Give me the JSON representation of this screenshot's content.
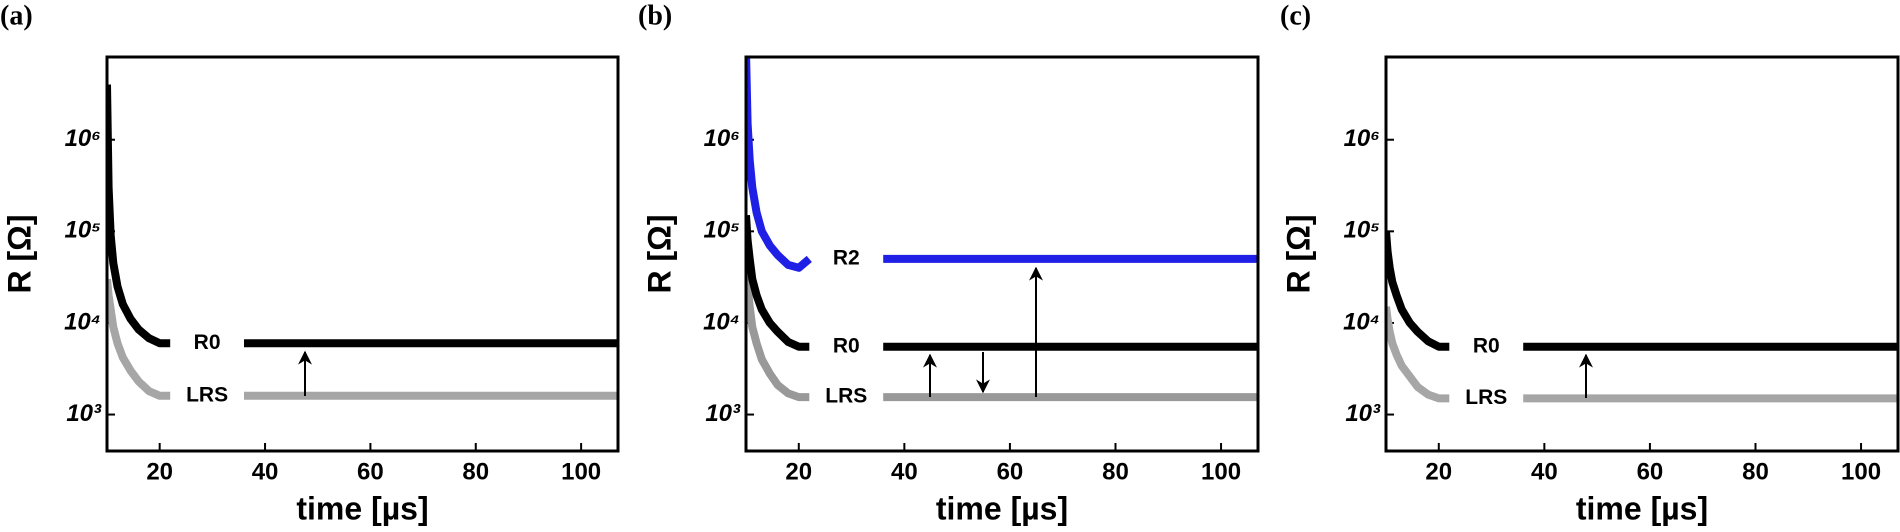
{
  "chart_data": [
    {
      "type": "line",
      "label": "(a)",
      "xlabel": "time [µs]",
      "ylabel": "R [Ω]",
      "xlim": [
        10,
        107
      ],
      "xticks": [
        20,
        40,
        60,
        80,
        100
      ],
      "ylim": [
        400,
        8000000
      ],
      "log_y": true,
      "yticks": [
        {
          "value": 1000,
          "label": "10³"
        },
        {
          "value": 10000,
          "label": "10⁴"
        },
        {
          "value": 100000,
          "label": "10⁵"
        },
        {
          "value": 1000000,
          "label": "10⁶"
        }
      ],
      "x": [
        10,
        10.3,
        10.7,
        11.2,
        12,
        13,
        14.5,
        16,
        18,
        20,
        22,
        29,
        36,
        50,
        70,
        90,
        107
      ],
      "series": [
        {
          "name": "LRS",
          "color": "#a6a6a6",
          "values": [
            30000,
            20000,
            14000,
            9000,
            6000,
            4200,
            3000,
            2300,
            1800,
            1600,
            1600,
            null,
            1600,
            1600,
            1600,
            1600,
            1600
          ]
        },
        {
          "name": "R0",
          "color": "#000000",
          "values": [
            4000000,
            300000,
            90000,
            45000,
            25000,
            16000,
            11000,
            8500,
            6800,
            6000,
            6000,
            null,
            6000,
            6000,
            6000,
            6000,
            6000
          ]
        }
      ]
    },
    {
      "type": "line",
      "label": "(b)",
      "xlabel": "time [µs]",
      "ylabel": "R [Ω]",
      "xlim": [
        10,
        107
      ],
      "xticks": [
        20,
        40,
        60,
        80,
        100
      ],
      "ylim": [
        400,
        8000000
      ],
      "log_y": true,
      "yticks": [
        {
          "value": 1000,
          "label": "10³"
        },
        {
          "value": 10000,
          "label": "10⁴"
        },
        {
          "value": 100000,
          "label": "10⁵"
        },
        {
          "value": 1000000,
          "label": "10⁶"
        }
      ],
      "x": [
        10,
        10.3,
        10.7,
        11.2,
        12,
        13,
        14.5,
        16,
        18,
        20,
        22,
        29,
        36,
        50,
        70,
        90,
        107
      ],
      "series": [
        {
          "name": "LRS",
          "color": "#999999",
          "values": [
            40000,
            25000,
            15000,
            9000,
            6000,
            4000,
            2800,
            2100,
            1700,
            1550,
            1550,
            null,
            1550,
            1550,
            1550,
            1550,
            1550
          ]
        },
        {
          "name": "R0",
          "color": "#000000",
          "values": [
            150000,
            80000,
            50000,
            30000,
            20000,
            14000,
            10000,
            8000,
            6200,
            5500,
            5500,
            null,
            5500,
            5500,
            5500,
            5500,
            5500
          ]
        },
        {
          "name": "R2",
          "color": "#1f1fe6",
          "values": [
            9000000,
            1500000,
            600000,
            300000,
            160000,
            100000,
            70000,
            55000,
            43000,
            40000,
            50000,
            null,
            50000,
            50000,
            50000,
            50000,
            50000
          ]
        }
      ]
    },
    {
      "type": "line",
      "label": "(c)",
      "xlabel": "time [µs]",
      "ylabel": "R [Ω]",
      "xlim": [
        10,
        107
      ],
      "xticks": [
        20,
        40,
        60,
        80,
        100
      ],
      "ylim": [
        400,
        8000000
      ],
      "log_y": true,
      "yticks": [
        {
          "value": 1000,
          "label": "10³"
        },
        {
          "value": 10000,
          "label": "10⁴"
        },
        {
          "value": 100000,
          "label": "10⁵"
        },
        {
          "value": 1000000,
          "label": "10⁶"
        }
      ],
      "x": [
        10,
        10.3,
        10.7,
        11.2,
        12,
        13,
        14.5,
        16,
        18,
        20,
        22,
        29,
        36,
        50,
        70,
        90,
        107
      ],
      "series": [
        {
          "name": "LRS",
          "color": "#a6a6a6",
          "values": [
            15000,
            11000,
            8000,
            6000,
            4500,
            3400,
            2600,
            2000,
            1650,
            1500,
            1500,
            null,
            1500,
            1500,
            1500,
            1500,
            1500
          ]
        },
        {
          "name": "R0",
          "color": "#000000",
          "values": [
            100000,
            60000,
            40000,
            28000,
            20000,
            14000,
            10000,
            8000,
            6300,
            5500,
            5500,
            null,
            5500,
            5500,
            5500,
            5500,
            5500
          ]
        }
      ]
    }
  ]
}
